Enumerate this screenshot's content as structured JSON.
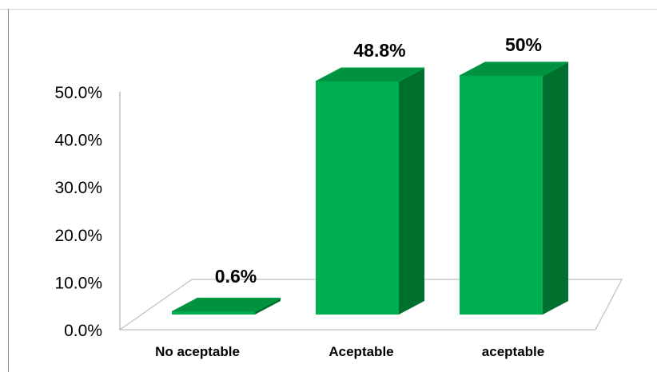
{
  "chart_data": {
    "type": "bar",
    "style": "3d",
    "categories": [
      "No aceptable",
      "Aceptable",
      "aceptable"
    ],
    "values": [
      0.6,
      48.8,
      50
    ],
    "data_labels": [
      "0.6%",
      "48.8%",
      "50%"
    ],
    "ylim": [
      0,
      50
    ],
    "yticks": [
      0,
      10,
      20,
      30,
      40,
      50
    ],
    "ytick_labels": [
      "0.0%",
      "10.0%",
      "20.0%",
      "30.0%",
      "40.0%",
      "50.0%"
    ],
    "title": "",
    "xlabel": "",
    "ylabel": "",
    "grid": false,
    "legend": "none",
    "colors": {
      "bar_front": "#00b050",
      "bar_side": "#00702f",
      "bar_top": "#00923f",
      "bar_edge": "#00a04a",
      "axis": "#bfbfbf",
      "floor": "#ffffff",
      "text": "#000000"
    }
  }
}
